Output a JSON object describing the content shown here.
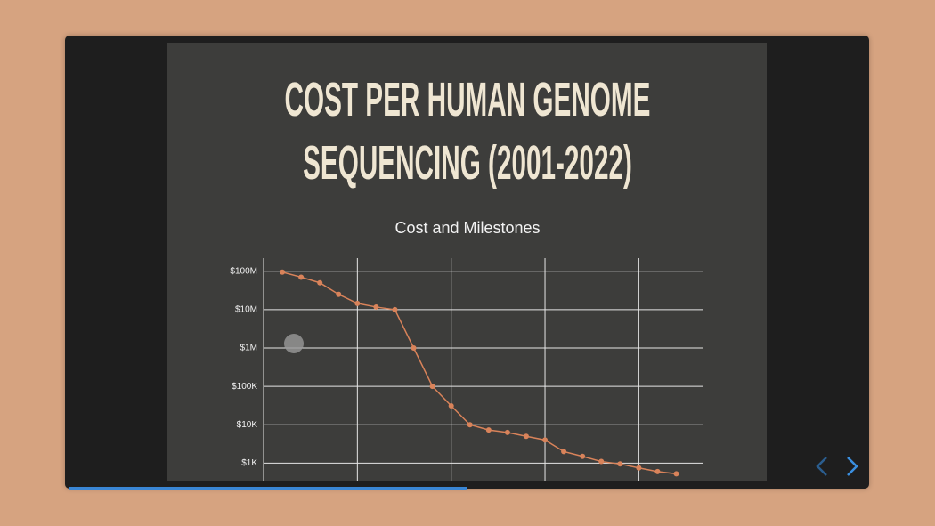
{
  "slide": {
    "title": "COST PER HUMAN GENOME SEQUENCING (2001-2022)"
  },
  "chart_data": {
    "type": "line",
    "title": "Cost and Milestones",
    "x": [
      2001,
      2002,
      2003,
      2004,
      2005,
      2006,
      2007,
      2008,
      2009,
      2010,
      2011,
      2012,
      2013,
      2014,
      2015,
      2016,
      2017,
      2018,
      2019,
      2020,
      2021,
      2022
    ],
    "series": [
      {
        "name": "Cost",
        "color": "#d9835a",
        "values": [
          95000000,
          70000000,
          50000000,
          25000000,
          14500000,
          11700000,
          10000000,
          1000000,
          100000,
          31000,
          10000,
          7300,
          6300,
          5000,
          4000,
          2000,
          1500,
          1100,
          950,
          750,
          600,
          525
        ]
      }
    ],
    "xlim": [
      2000,
      2023.4
    ],
    "xticks": [
      2000,
      2005,
      2010,
      2015,
      2020
    ],
    "ylim": [
      350,
      220000000
    ],
    "log_y": true,
    "yticks": [
      {
        "value": 1000,
        "label": "$1K"
      },
      {
        "value": 10000,
        "label": "$10K"
      },
      {
        "value": 100000,
        "label": "$100K"
      },
      {
        "value": 1000000,
        "label": "$1M"
      },
      {
        "value": 10000000,
        "label": "$10M"
      },
      {
        "value": 100000000,
        "label": "$100M"
      }
    ],
    "grid": true
  }
}
